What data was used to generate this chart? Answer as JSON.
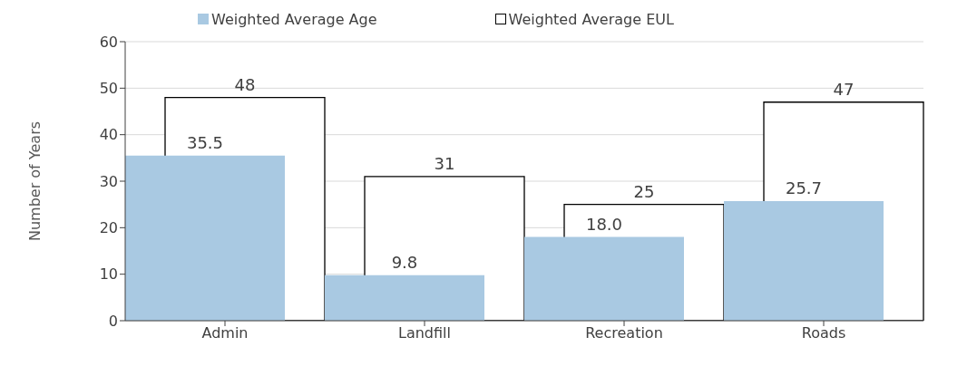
{
  "chart_data": {
    "type": "bar",
    "ylabel": "Number of Years",
    "categories": [
      "Admin",
      "Landfill",
      "Recreation",
      "Roads"
    ],
    "series": [
      {
        "name": "Weighted Average Age",
        "color": "#a9c9e2",
        "values": [
          35.5,
          9.8,
          18.0,
          25.7
        ],
        "value_labels": [
          "35.5",
          "9.8",
          "18.0",
          "25.7"
        ]
      },
      {
        "name": "Weighted Average EUL",
        "color": "#ffffff",
        "values": [
          48,
          31,
          25,
          47
        ],
        "value_labels": [
          "48",
          "31",
          "25",
          "47"
        ]
      }
    ],
    "ylim": [
      0,
      60
    ],
    "yticks": [
      0,
      10,
      20,
      30,
      40,
      50,
      60
    ],
    "grid": "y",
    "legend": "top"
  }
}
